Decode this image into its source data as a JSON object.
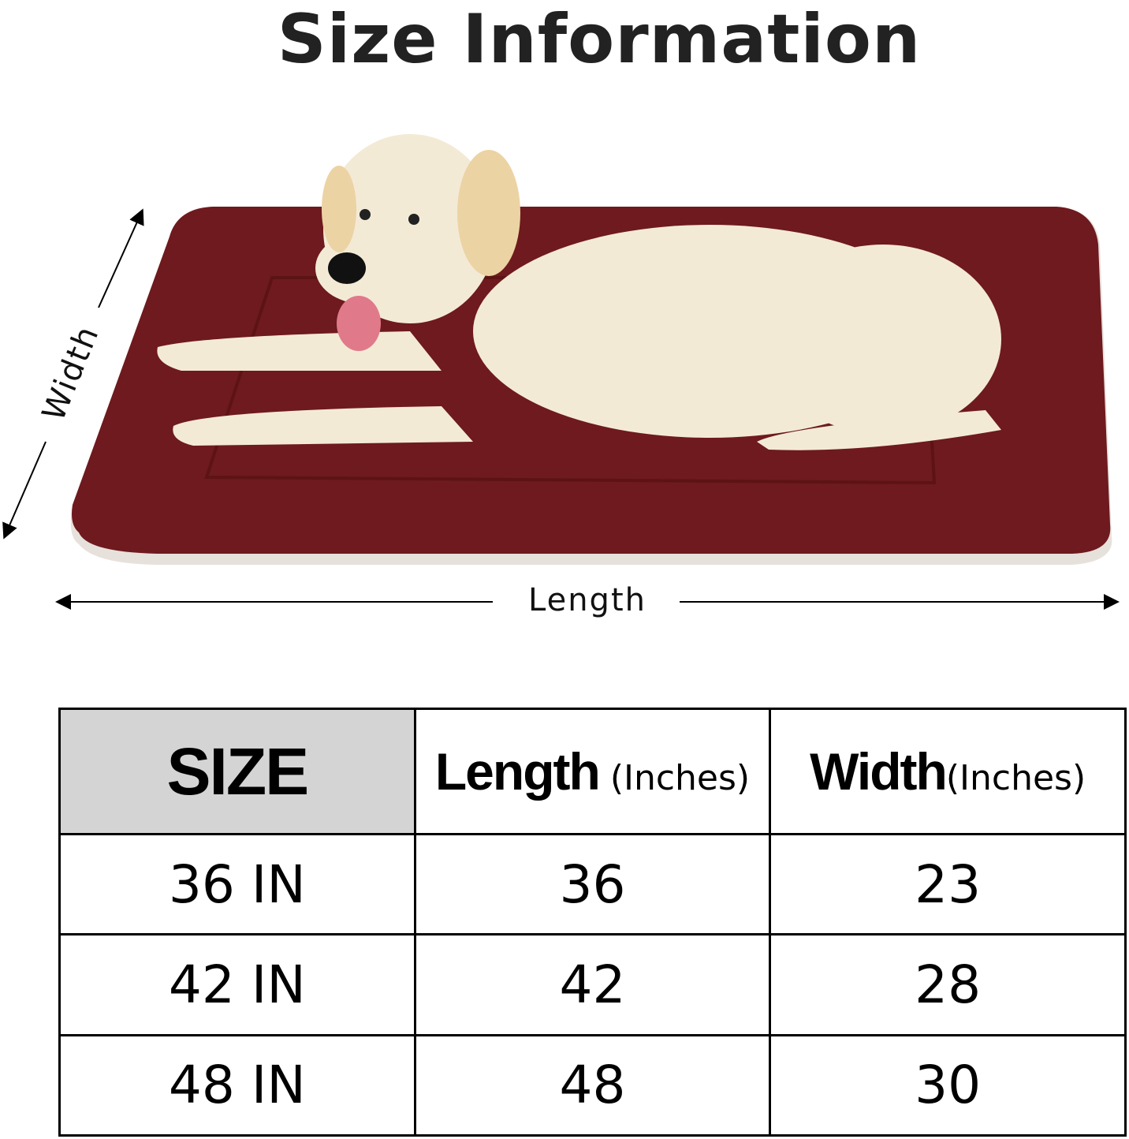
{
  "title": "Size Information",
  "diagram": {
    "length_label": "Length",
    "width_label": "Width",
    "bed_color": "#6e1a1e"
  },
  "table": {
    "headers": {
      "size": "SIZE",
      "length": "Length",
      "length_unit": "(Inches)",
      "width": "Width",
      "width_unit": "(Inches)"
    },
    "header_bg": "#d4d4d4",
    "rows": [
      {
        "size": "36 IN",
        "length": "36",
        "width": "23"
      },
      {
        "size": "42 IN",
        "length": "42",
        "width": "28"
      },
      {
        "size": "48 IN",
        "length": "48",
        "width": "30"
      }
    ]
  }
}
